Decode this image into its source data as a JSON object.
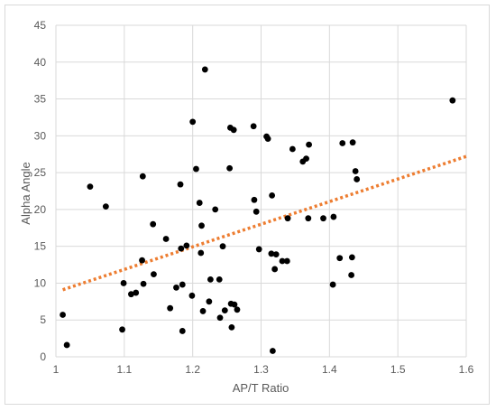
{
  "chart_data": {
    "type": "scatter",
    "title": "",
    "xlabel": "AP/T Ratio",
    "ylabel": "Alpha Angle",
    "xlim": [
      1,
      1.6
    ],
    "ylim": [
      0,
      45
    ],
    "x_ticks": [
      "1",
      "1.1",
      "1.2",
      "1.3",
      "1.4",
      "1.5",
      "1.6"
    ],
    "y_ticks": [
      "0",
      "5",
      "10",
      "15",
      "20",
      "25",
      "30",
      "35",
      "40",
      "45"
    ],
    "grid": true,
    "marker_color": "#000000",
    "trendline": {
      "type": "linear",
      "color": "#ED7D31",
      "style": "dotted",
      "points": [
        [
          1.01,
          9.1
        ],
        [
          1.6,
          27.2
        ]
      ]
    },
    "points": [
      [
        1.01,
        5.7
      ],
      [
        1.016,
        1.6
      ],
      [
        1.05,
        23.1
      ],
      [
        1.073,
        20.4
      ],
      [
        1.097,
        3.7
      ],
      [
        1.099,
        10.0
      ],
      [
        1.11,
        8.5
      ],
      [
        1.117,
        8.7
      ],
      [
        1.126,
        13.1
      ],
      [
        1.127,
        24.5
      ],
      [
        1.128,
        9.9
      ],
      [
        1.142,
        18.0
      ],
      [
        1.143,
        11.2
      ],
      [
        1.161,
        16.0
      ],
      [
        1.167,
        6.6
      ],
      [
        1.176,
        9.4
      ],
      [
        1.182,
        23.4
      ],
      [
        1.183,
        14.7
      ],
      [
        1.185,
        3.5
      ],
      [
        1.185,
        9.8
      ],
      [
        1.191,
        15.1
      ],
      [
        1.199,
        8.3
      ],
      [
        1.2,
        31.9
      ],
      [
        1.205,
        25.5
      ],
      [
        1.21,
        20.9
      ],
      [
        1.212,
        14.1
      ],
      [
        1.213,
        17.8
      ],
      [
        1.215,
        6.2
      ],
      [
        1.218,
        39.0
      ],
      [
        1.224,
        7.5
      ],
      [
        1.226,
        10.5
      ],
      [
        1.233,
        20.0
      ],
      [
        1.239,
        10.5
      ],
      [
        1.24,
        5.3
      ],
      [
        1.244,
        15.0
      ],
      [
        1.247,
        6.3
      ],
      [
        1.254,
        25.6
      ],
      [
        1.255,
        31.1
      ],
      [
        1.256,
        7.2
      ],
      [
        1.257,
        4.0
      ],
      [
        1.26,
        30.8
      ],
      [
        1.261,
        7.1
      ],
      [
        1.265,
        6.4
      ],
      [
        1.289,
        31.3
      ],
      [
        1.29,
        21.3
      ],
      [
        1.293,
        19.7
      ],
      [
        1.297,
        14.6
      ],
      [
        1.308,
        29.9
      ],
      [
        1.31,
        29.6
      ],
      [
        1.315,
        14.0
      ],
      [
        1.316,
        21.9
      ],
      [
        1.317,
        0.8
      ],
      [
        1.32,
        11.9
      ],
      [
        1.322,
        13.9
      ],
      [
        1.331,
        13.0
      ],
      [
        1.338,
        13.0
      ],
      [
        1.339,
        18.8
      ],
      [
        1.346,
        28.2
      ],
      [
        1.361,
        26.5
      ],
      [
        1.366,
        26.9
      ],
      [
        1.369,
        18.8
      ],
      [
        1.37,
        28.8
      ],
      [
        1.391,
        18.8
      ],
      [
        1.405,
        9.8
      ],
      [
        1.406,
        19.0
      ],
      [
        1.415,
        13.4
      ],
      [
        1.419,
        29.0
      ],
      [
        1.432,
        11.1
      ],
      [
        1.433,
        13.5
      ],
      [
        1.434,
        29.1
      ],
      [
        1.438,
        25.2
      ],
      [
        1.44,
        24.1
      ],
      [
        1.58,
        34.8
      ]
    ]
  }
}
